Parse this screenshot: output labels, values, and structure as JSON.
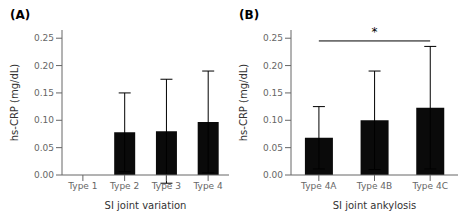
{
  "chart_data": [
    {
      "type": "bar",
      "title": "(A)",
      "categories": [
        "Type 1",
        "Type 2",
        "Type 3",
        "Type 4"
      ],
      "values": [
        0.0,
        0.078,
        0.08,
        0.097
      ],
      "errors": [
        0.0,
        0.072,
        0.095,
        0.093
      ],
      "color": "#0a0a0a",
      "xlabel": "SI joint variation",
      "ylabel": "hs-CRP (mg/dL)",
      "ylim": [
        0,
        0.265
      ],
      "yticks": [
        {
          "value": 0.0,
          "label": "0.00"
        },
        {
          "value": 0.05,
          "label": "0.05"
        },
        {
          "value": 0.1,
          "label": "0.10"
        },
        {
          "value": 0.15,
          "label": "0.15"
        },
        {
          "value": 0.2,
          "label": "0.20"
        },
        {
          "value": 0.25,
          "label": "0.25"
        }
      ],
      "grid": false
    },
    {
      "type": "bar",
      "title": "(B)",
      "categories": [
        "Type 4A",
        "Type 4B",
        "Type 4C"
      ],
      "values": [
        0.068,
        0.1,
        0.123
      ],
      "errors": [
        0.057,
        0.09,
        0.112
      ],
      "color": "#0a0a0a",
      "xlabel": "SI joint ankylosis",
      "ylabel": "hs-CRP (mg/dL)",
      "ylim": [
        0,
        0.265
      ],
      "yticks": [
        {
          "value": 0.0,
          "label": "0.00"
        },
        {
          "value": 0.05,
          "label": "0.05"
        },
        {
          "value": 0.1,
          "label": "0.10"
        },
        {
          "value": 0.15,
          "label": "0.15"
        },
        {
          "value": 0.2,
          "label": "0.20"
        },
        {
          "value": 0.25,
          "label": "0.25"
        }
      ],
      "grid": false,
      "annotations": [
        {
          "text": "*",
          "from": "Type 4A",
          "to": "Type 4C",
          "y": 0.245
        }
      ]
    }
  ]
}
